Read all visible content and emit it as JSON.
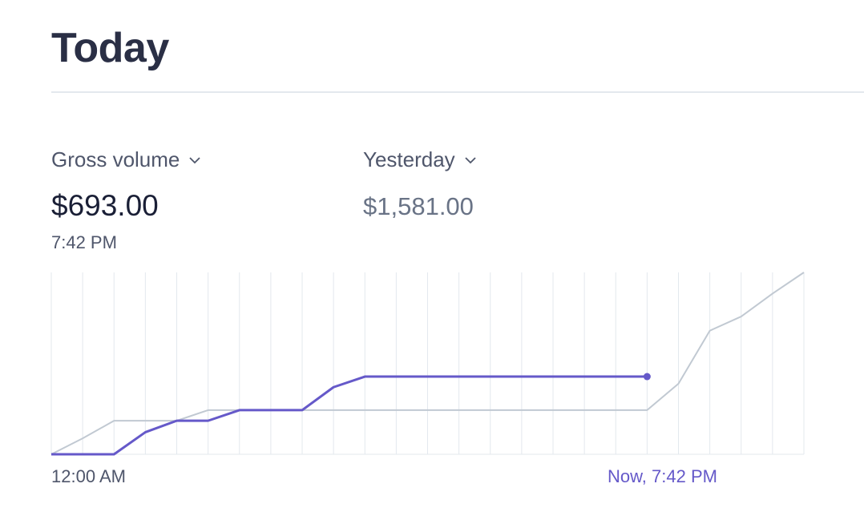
{
  "page": {
    "title": "Today"
  },
  "metric": {
    "selector_label": "Gross volume",
    "value": "$693.00",
    "time": "7:42 PM"
  },
  "comparison": {
    "selector_label": "Yesterday",
    "value": "$1,581.00"
  },
  "colors": {
    "today_line": "#6559c9",
    "yesterday_line": "#c1c9d2",
    "grid": "#e3e8ee"
  },
  "chart_data": {
    "type": "line",
    "x_labels": {
      "start": "12:00 AM",
      "now": "Now, 7:42 PM"
    },
    "grid": true,
    "series": [
      {
        "values": [
          0,
          0,
          0,
          125,
          190,
          190,
          250,
          250,
          250,
          380,
          440,
          440,
          440,
          440,
          440,
          440,
          440,
          440,
          440,
          440
        ]
      },
      {
        "values": [
          0,
          90,
          190,
          190,
          190,
          250,
          250,
          250,
          250,
          250,
          250,
          250,
          250,
          250,
          250,
          250,
          250,
          250,
          250,
          250,
          400,
          700,
          780,
          910,
          1030
        ]
      }
    ],
    "ylim": [
      0,
      1030
    ],
    "x_count": 25
  }
}
